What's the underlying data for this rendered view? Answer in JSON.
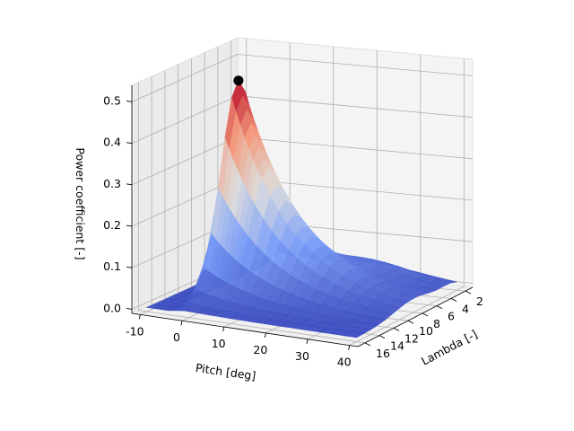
{
  "chart_data": {
    "type": "surface",
    "title": "",
    "colormap": "coolwarm",
    "axes": {
      "x": {
        "label": "Pitch [deg]",
        "range": [
          -12,
          42
        ],
        "ticks": [
          -10,
          0,
          10,
          20,
          30,
          40
        ]
      },
      "y": {
        "label": "Lambda [-]",
        "range": [
          1,
          17
        ],
        "ticks": [
          2,
          4,
          6,
          8,
          10,
          12,
          14,
          16
        ]
      },
      "z": {
        "label": "Power coefficient [-]",
        "range": [
          -0.01,
          0.54
        ],
        "ticks": [
          0.0,
          0.1,
          0.2,
          0.3,
          0.4,
          0.5
        ]
      }
    },
    "grid": true,
    "surface_shape": "Cp(lambda, pitch) ridge: max near pitch 0 deg, lambda 8; zero for pitch below about -5 deg; decays with increasing pitch and towards low lambda",
    "pitch_samples": [
      -10,
      -8,
      -6,
      -5,
      -4,
      -3,
      -2,
      -1,
      0,
      1,
      2,
      3,
      4,
      5,
      6,
      8,
      10,
      12,
      14,
      16,
      18,
      20,
      22,
      25,
      28,
      31,
      34,
      37,
      40
    ],
    "lambda_samples": [
      2,
      3,
      4,
      5,
      6,
      7,
      8,
      9,
      10,
      11,
      12,
      13,
      14,
      15,
      16
    ],
    "max_point": {
      "pitch": -1,
      "lambda": 8,
      "cp": 0.5,
      "marker_color": "#000000"
    }
  }
}
